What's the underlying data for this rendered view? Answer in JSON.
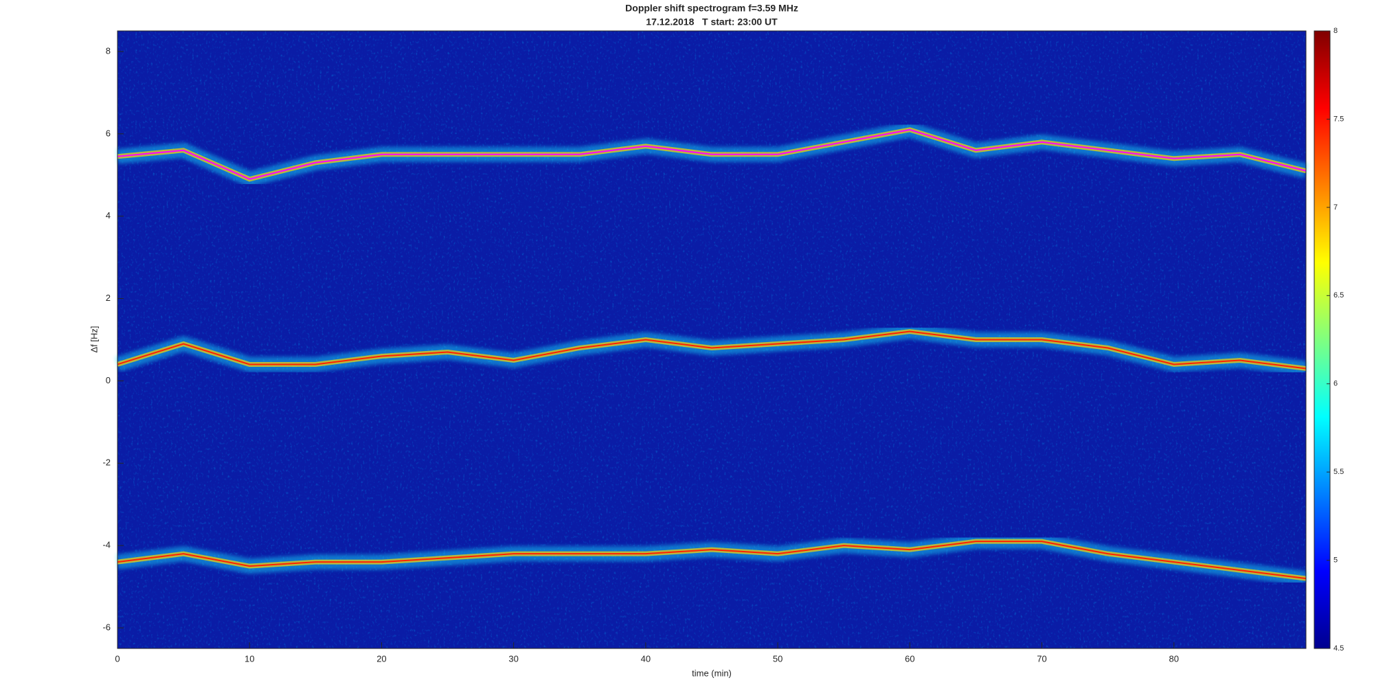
{
  "chart_data": {
    "type": "spectrogram",
    "title": "Doppler shift spectrogram f=3.59 MHz",
    "subtitle": "17.12.2018   T start: 23:00 UT",
    "x_label": "time (min)",
    "y_label": "Δf [Hz]",
    "x": [
      0,
      5,
      10,
      15,
      20,
      25,
      30,
      35,
      40,
      45,
      50,
      55,
      60,
      65,
      70,
      75,
      80,
      85,
      90
    ],
    "series": [
      {
        "color": "#ff00ff",
        "values": [
          5.45,
          5.6,
          4.9,
          5.3,
          5.5,
          5.5,
          5.5,
          5.5,
          5.7,
          5.5,
          5.5,
          5.8,
          6.1,
          5.6,
          5.8,
          5.6,
          5.4,
          5.5,
          5.1
        ]
      },
      {
        "color": "#ff2000",
        "values": [
          0.4,
          0.9,
          0.4,
          0.4,
          0.6,
          0.7,
          0.5,
          0.8,
          1.0,
          0.8,
          0.9,
          1.0,
          1.2,
          1.0,
          1.0,
          0.8,
          0.4,
          0.5,
          0.3
        ]
      },
      {
        "color": "#ff2000",
        "values": [
          -4.4,
          -4.2,
          -4.5,
          -4.4,
          -4.4,
          -4.3,
          -4.2,
          -4.2,
          -4.2,
          -4.1,
          -4.2,
          -4.0,
          -4.1,
          -3.9,
          -3.9,
          -4.2,
          -4.4,
          -4.6,
          -4.8
        ]
      }
    ],
    "xlim": [
      0,
      90
    ],
    "xticks": [
      0,
      10,
      20,
      30,
      40,
      50,
      60,
      70,
      80
    ],
    "ylim": [
      -6.5,
      8.5
    ],
    "yticks": [
      -6,
      -4,
      -2,
      0,
      2,
      4,
      6,
      8
    ],
    "clim": [
      4.5,
      8
    ],
    "cticks": [
      4.5,
      5,
      5.5,
      6,
      6.5,
      7,
      7.5,
      8
    ]
  }
}
